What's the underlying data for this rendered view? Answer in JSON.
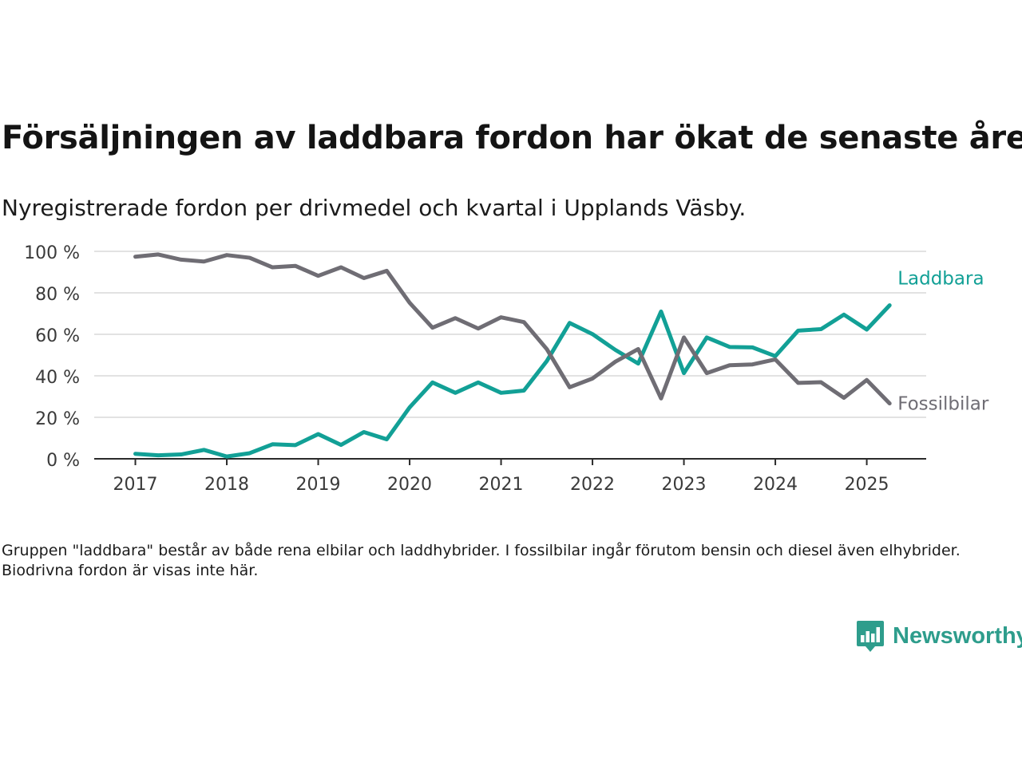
{
  "title": "Försäljningen av laddbara fordon har ökat de senaste åren",
  "subtitle": "Nyregistrerade fordon per drivmedel och kvartal i Upplands Väsby.",
  "note": "Gruppen \"laddbara\" består av både rena elbilar och laddhybrider. I fossilbilar ingår förutom bensin och diesel även elhybrider. Biodrivna fordon är visas inte här.",
  "brand": {
    "name": "Newsworthy",
    "icon": "newsworthy-logo-icon",
    "color": "#2e9d8c"
  },
  "chart_data": {
    "type": "line",
    "title": "Försäljningen av laddbara fordon har ökat de senaste åren",
    "subtitle": "Nyregistrerade fordon per drivmedel och kvartal i Upplands Väsby.",
    "xlabel": "",
    "ylabel": "",
    "x": [
      2017.0,
      2017.25,
      2017.5,
      2017.75,
      2018.0,
      2018.25,
      2018.5,
      2018.75,
      2019.0,
      2019.25,
      2019.5,
      2019.75,
      2020.0,
      2020.25,
      2020.5,
      2020.75,
      2021.0,
      2021.25,
      2021.5,
      2021.75,
      2022.0,
      2022.25,
      2022.5,
      2022.75,
      2023.0,
      2023.25,
      2023.5,
      2023.75,
      2024.0,
      2024.25,
      2024.5,
      2024.75,
      2025.0,
      2025.25
    ],
    "xlim": [
      2016.55,
      2025.65
    ],
    "xticks": [
      2017,
      2018,
      2019,
      2020,
      2021,
      2022,
      2023,
      2024,
      2025
    ],
    "xtick_labels": [
      "2017",
      "2018",
      "2019",
      "2020",
      "2021",
      "2022",
      "2023",
      "2024",
      "2025"
    ],
    "ylim": [
      0,
      100
    ],
    "yticks": [
      0,
      20,
      40,
      60,
      80,
      100
    ],
    "ytick_labels": [
      "0 %",
      "20 %",
      "40 %",
      "60 %",
      "80 %",
      "100 %"
    ],
    "grid": true,
    "legend": "direct labels at line ends",
    "series": [
      {
        "name": "Laddbara",
        "color": "#12a096",
        "values": [
          2.4,
          1.7,
          2.1,
          4.3,
          1.1,
          2.7,
          7.0,
          6.6,
          11.9,
          6.7,
          12.9,
          9.4,
          24.8,
          36.8,
          31.8,
          36.8,
          31.8,
          32.9,
          47.1,
          65.5,
          60.1,
          52.5,
          45.9,
          71.0,
          41.3,
          58.5,
          53.9,
          53.7,
          49.5,
          61.8,
          62.5,
          69.5,
          62.3,
          74.0
        ]
      },
      {
        "name": "Fossilbilar",
        "color": "#6f6d74",
        "values": [
          97.4,
          98.5,
          96.0,
          95.1,
          98.2,
          96.9,
          92.3,
          93.0,
          88.2,
          92.3,
          87.1,
          90.6,
          75.2,
          63.2,
          67.8,
          62.8,
          68.2,
          65.9,
          52.9,
          34.5,
          38.7,
          46.8,
          52.9,
          29.1,
          58.5,
          41.3,
          45.1,
          45.5,
          47.9,
          36.6,
          36.9,
          29.4,
          38.0,
          26.7
        ]
      }
    ]
  }
}
